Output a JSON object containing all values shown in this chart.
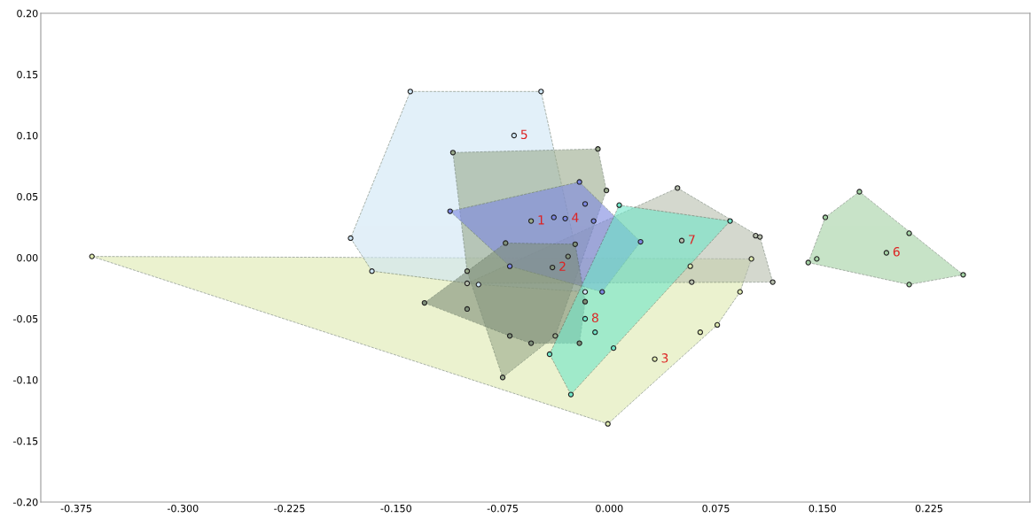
{
  "chart_data": {
    "type": "scatter",
    "xlim": [
      -0.4,
      0.296
    ],
    "ylim": [
      -0.2,
      0.2
    ],
    "xticks": [
      {
        "value": -0.375,
        "label": "-0.375"
      },
      {
        "value": -0.3,
        "label": "-0.300"
      },
      {
        "value": -0.225,
        "label": "-0.225"
      },
      {
        "value": -0.15,
        "label": "-0.150"
      },
      {
        "value": -0.075,
        "label": "-0.075"
      },
      {
        "value": 0,
        "label": "0.000"
      },
      {
        "value": 0.075,
        "label": "0.075"
      },
      {
        "value": 0.15,
        "label": "0.150"
      },
      {
        "value": 0.225,
        "label": "0.225"
      }
    ],
    "yticks": [
      {
        "value": -0.2,
        "label": "-0.20"
      },
      {
        "value": -0.15,
        "label": "-0.15"
      },
      {
        "value": -0.1,
        "label": "-0.10"
      },
      {
        "value": -0.05,
        "label": "-0.05"
      },
      {
        "value": 0,
        "label": "0.00"
      },
      {
        "value": 0.05,
        "label": "0.05"
      },
      {
        "value": 0.1,
        "label": "0.10"
      },
      {
        "value": 0.15,
        "label": "0.15"
      },
      {
        "value": 0.2,
        "label": "0.20"
      }
    ],
    "grid": false,
    "legend": false,
    "marker": "circle",
    "series": [
      {
        "name": "3",
        "color": "#dfeab0",
        "x": [
          -0.364,
          0.1,
          0.092,
          0.076,
          -0.001,
          0.032,
          0.064,
          0.057
        ],
        "values": [
          0.001,
          -0.001,
          -0.028,
          -0.055,
          -0.136,
          -0.083,
          -0.061,
          -0.007
        ]
      },
      {
        "name": "5",
        "color": "#cfe6f5",
        "x": [
          -0.14,
          -0.048,
          -0.017,
          -0.092,
          -0.167,
          -0.182,
          -0.067
        ],
        "values": [
          0.136,
          0.136,
          -0.028,
          -0.022,
          -0.011,
          0.016,
          0.1
        ]
      },
      {
        "name": "7",
        "color": "#b8bfae",
        "x": [
          0.048,
          0.103,
          0.106,
          0.115,
          -0.1,
          0.051,
          0.058
        ],
        "values": [
          0.057,
          0.018,
          0.017,
          -0.02,
          -0.021,
          0.014,
          -0.02
        ]
      },
      {
        "name": "1",
        "color": "#9aaa8c",
        "x": [
          -0.11,
          -0.008,
          -0.002,
          -0.038,
          -0.075,
          -0.1,
          -0.055
        ],
        "values": [
          0.086,
          0.089,
          0.055,
          -0.064,
          -0.098,
          -0.011,
          0.03
        ]
      },
      {
        "name": "4",
        "color": "#7b86e0",
        "x": [
          -0.112,
          -0.021,
          0.022,
          -0.005,
          -0.07,
          -0.039,
          -0.017,
          -0.031,
          -0.011
        ],
        "values": [
          0.038,
          0.062,
          0.013,
          -0.028,
          -0.007,
          0.033,
          0.044,
          0.032,
          0.03
        ]
      },
      {
        "name": "2",
        "color": "#7f8f7a",
        "x": [
          -0.13,
          -0.073,
          -0.024,
          -0.017,
          -0.021,
          -0.055,
          -0.07,
          -0.1,
          -0.04,
          -0.029
        ],
        "values": [
          -0.037,
          0.012,
          0.011,
          -0.036,
          -0.07,
          -0.07,
          -0.064,
          -0.042,
          -0.008,
          0.001
        ]
      },
      {
        "name": "8",
        "color": "#6fe6c8",
        "x": [
          0.007,
          0.085,
          -0.027,
          -0.042,
          -0.01,
          -0.017,
          0.003
        ],
        "values": [
          0.043,
          0.03,
          -0.112,
          -0.079,
          -0.061,
          -0.05,
          -0.074
        ]
      },
      {
        "name": "6",
        "color": "#a3d1a3",
        "x": [
          0.14,
          0.146,
          0.152,
          0.176,
          0.211,
          0.249,
          0.211,
          0.195
        ],
        "values": [
          -0.004,
          -0.001,
          0.033,
          0.054,
          0.02,
          -0.014,
          -0.022,
          0.004
        ]
      }
    ]
  }
}
